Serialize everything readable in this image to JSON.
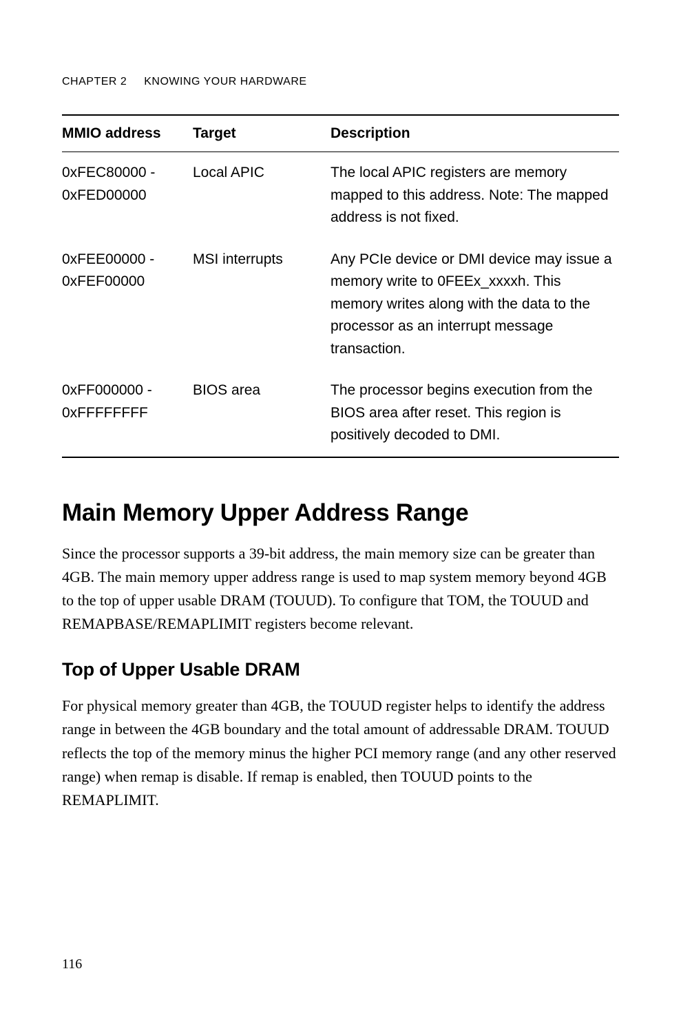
{
  "header": {
    "chapter_label": "CHAPTER 2",
    "chapter_title": "KNOWING YOUR HARDWARE"
  },
  "table": {
    "columns": [
      "MMIO address",
      "Target",
      "Description"
    ],
    "rows": [
      {
        "address": "0xFEC80000 - 0xFED00000",
        "target": "Local APIC",
        "description": "The local APIC registers are memory mapped to this address.\nNote: The mapped address is not fixed."
      },
      {
        "address": "0xFEE00000 - 0xFEF00000",
        "target": "MSI interrupts",
        "description": "Any PCIe device or DMI device may issue a memory write to 0FEEx_xxxxh. This memory writes along with the data to the processor as an interrupt message transaction."
      },
      {
        "address": "0xFF000000 - 0xFFFFFFFF",
        "target": "BIOS area",
        "description": "The processor begins execution from the BIOS area after reset. This region is positively decoded to DMI."
      }
    ]
  },
  "section": {
    "h1": "Main Memory Upper Address Range",
    "p1": "Since the processor supports a 39-bit address, the main memory size can be greater than 4GB. The main memory upper address range is used to map system memory beyond 4GB to the top of upper usable DRAM (TOUUD). To configure that TOM, the TOUUD and REMAPBASE/REMAPLIMIT registers become relevant.",
    "h2": "Top of Upper Usable DRAM",
    "p2": "For physical memory greater than 4GB, the TOUUD register helps to identify the address range in between the 4GB boundary and the total amount of addressable DRAM. TOUUD reflects the top of the memory minus the higher PCI memory range (and any other reserved range) when remap is disable. If remap is enabled, then TOUUD points to the REMAPLIMIT."
  },
  "page_number": "116"
}
